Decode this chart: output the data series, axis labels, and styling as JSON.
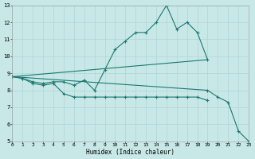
{
  "bg_color": "#c8e8e8",
  "line_color": "#1a7870",
  "xlabel": "Humidex (Indice chaleur)",
  "xlim": [
    0,
    23
  ],
  "ylim": [
    5,
    13
  ],
  "xticks": [
    0,
    1,
    2,
    3,
    4,
    5,
    6,
    7,
    8,
    9,
    10,
    11,
    12,
    13,
    14,
    15,
    16,
    17,
    18,
    19,
    20,
    21,
    22,
    23
  ],
  "yticks": [
    5,
    6,
    7,
    8,
    9,
    10,
    11,
    12,
    13
  ],
  "line1_x": [
    0,
    1,
    2,
    3,
    4,
    5,
    6,
    7,
    8,
    9,
    10,
    11,
    12,
    13,
    14,
    15,
    16,
    17,
    18,
    19
  ],
  "line1_y": [
    8.8,
    8.7,
    8.5,
    8.4,
    8.5,
    8.5,
    8.3,
    8.6,
    8.0,
    9.2,
    10.4,
    10.9,
    11.4,
    11.4,
    12.0,
    13.0,
    11.6,
    12.0,
    11.4,
    9.8
  ],
  "line2_x": [
    0,
    19
  ],
  "line2_y": [
    8.8,
    9.8
  ],
  "line3_x": [
    0,
    1,
    2,
    3,
    4,
    5,
    6,
    7,
    8,
    9,
    10,
    11,
    12,
    13,
    14,
    15,
    16,
    17,
    18,
    19
  ],
  "line3_y": [
    8.8,
    8.7,
    8.4,
    8.3,
    8.4,
    7.8,
    7.6,
    7.6,
    7.6,
    7.6,
    7.6,
    7.6,
    7.6,
    7.6,
    7.6,
    7.6,
    7.6,
    7.6,
    7.6,
    7.4
  ],
  "line4_x": [
    0,
    19,
    20,
    21,
    22,
    23
  ],
  "line4_y": [
    8.8,
    8.0,
    7.6,
    7.3,
    5.6,
    5.0
  ]
}
